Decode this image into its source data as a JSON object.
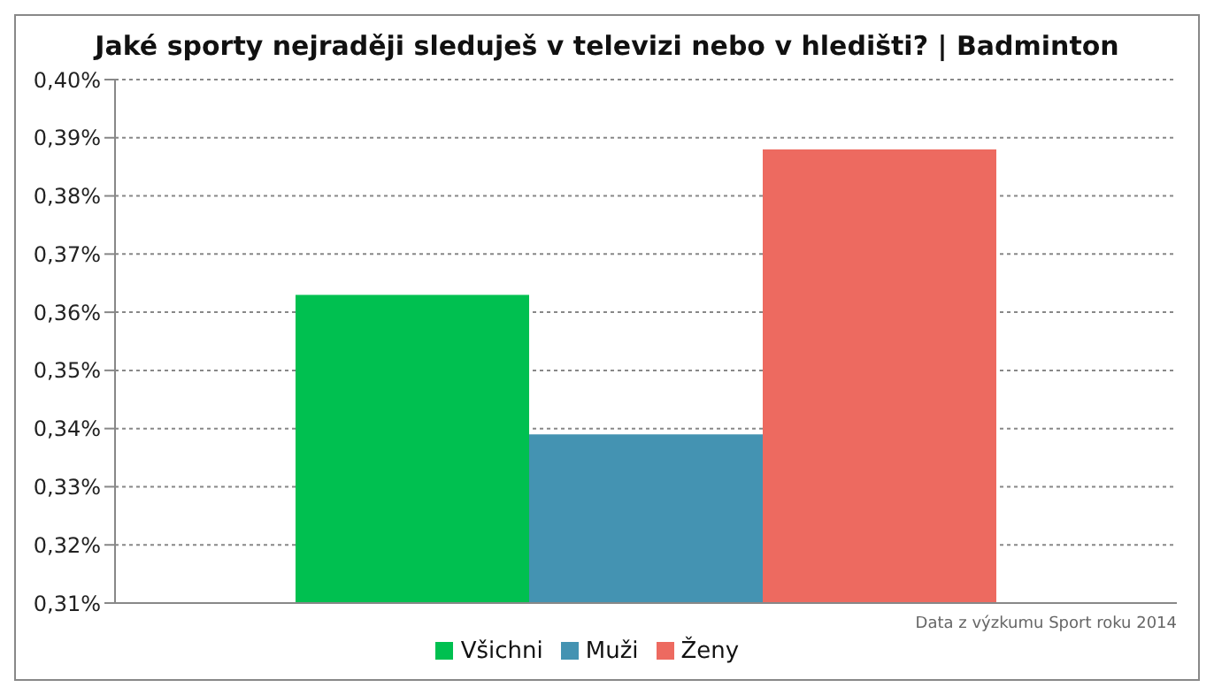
{
  "chart_data": {
    "type": "bar",
    "title": "Jaké sporty nejraději sleduješ v televizi nebo v hledišti? | Badminton",
    "categories": [
      null
    ],
    "series": [
      {
        "name": "Všichni",
        "color": "#00c050",
        "values": [
          0.363
        ]
      },
      {
        "name": "Muži",
        "color": "#4493b2",
        "values": [
          0.339
        ]
      },
      {
        "name": "Ženy",
        "color": "#ed6a60",
        "values": [
          0.388
        ]
      }
    ],
    "ylim": [
      0.31,
      0.4
    ],
    "yticks": [
      {
        "value": 0.31,
        "label": "0,31%"
      },
      {
        "value": 0.32,
        "label": "0,32%"
      },
      {
        "value": 0.33,
        "label": "0,33%"
      },
      {
        "value": 0.34,
        "label": "0,34%"
      },
      {
        "value": 0.35,
        "label": "0,35%"
      },
      {
        "value": 0.36,
        "label": "0,36%"
      },
      {
        "value": 0.37,
        "label": "0,37%"
      },
      {
        "value": 0.38,
        "label": "0,38%"
      },
      {
        "value": 0.39,
        "label": "0,39%"
      },
      {
        "value": 0.4,
        "label": "0,40%"
      }
    ],
    "grid": "y",
    "legend": "bottom",
    "annotations": [
      "Data z výzkumu Sport roku 2014"
    ]
  }
}
